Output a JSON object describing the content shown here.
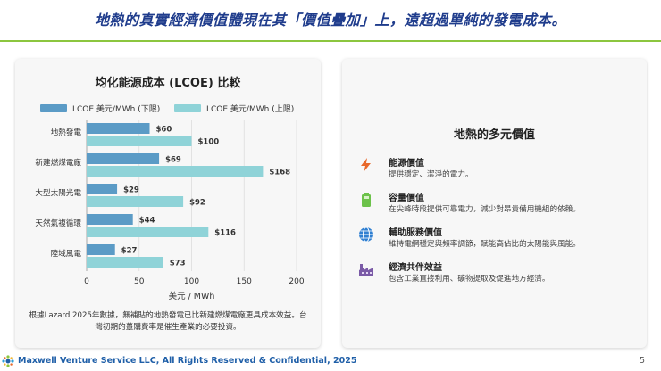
{
  "headline": "地熱的真實經濟價值體現在其「價值疊加」上，遠超過單純的發電成本。",
  "chart_data": {
    "type": "bar",
    "orientation": "horizontal",
    "title": "均化能源成本 (LCOE) 比較",
    "categories": [
      "地熱發電",
      "新建燃煤電廠",
      "大型太陽光電",
      "天然氣複循環",
      "陸域風電"
    ],
    "series": [
      {
        "name": "LCOE 美元/MWh (下限)",
        "color": "#5b9bc6",
        "values": [
          60,
          69,
          29,
          44,
          27
        ]
      },
      {
        "name": "LCOE 美元/MWh (上限)",
        "color": "#8fd3d8",
        "values": [
          100,
          168,
          92,
          116,
          73
        ]
      }
    ],
    "value_prefix": "$",
    "xlabel": "美元 / MWh",
    "xlim": [
      0,
      200
    ],
    "xticks": [
      "0",
      "50",
      "100",
      "150",
      "200"
    ],
    "grid": true,
    "legend": "top"
  },
  "footnote": "根據Lazard 2025年數據，無補貼的地熱發電已比新建燃煤電廠更具成本效益。台灣初期的躉購費率是催生產業的必要投資。",
  "values_section": {
    "title": "地熱的多元價值",
    "items": [
      {
        "title": "能源價值",
        "desc": "提供穩定、潔淨的電力。",
        "icon": "lightning-icon",
        "color": "#e8682a"
      },
      {
        "title": "容量價值",
        "desc": "在尖峰時段提供可靠電力，減少對昂貴備用機組的依賴。",
        "icon": "battery-icon",
        "color": "#6cc24a"
      },
      {
        "title": "輔助服務價值",
        "desc": "維持電網穩定與頻率調節，賦能高佔比的太陽能與風能。",
        "icon": "globe-icon",
        "color": "#2f7fd1"
      },
      {
        "title": "經濟共伴效益",
        "desc": "包含工業直接利用、礦物提取及促進地方經濟。",
        "icon": "factory-icon",
        "color": "#7a5aa6"
      }
    ]
  },
  "footer": {
    "company": "Maxwell Venture Service LLC, All Rights Reserved & Confidential, 2025",
    "page_number": "5"
  }
}
